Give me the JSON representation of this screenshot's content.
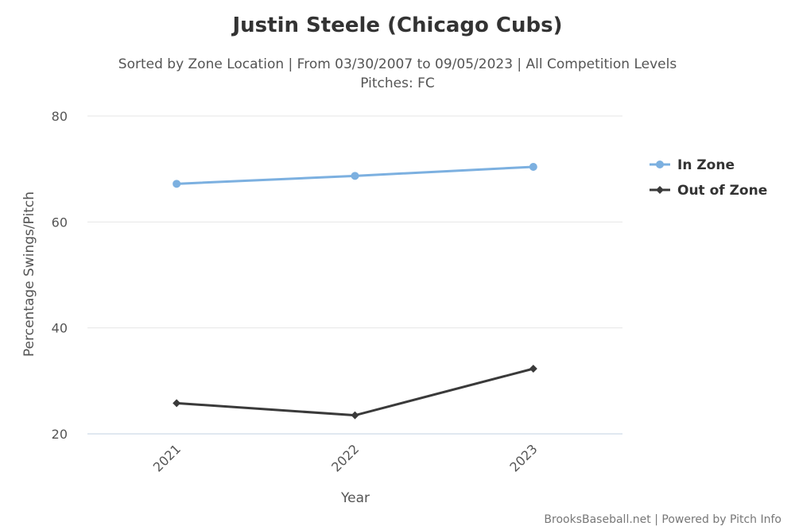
{
  "chart_data": {
    "type": "line",
    "title": "Justin Steele (Chicago Cubs)",
    "subtitle": "Sorted by Zone Location | From 03/30/2007 to 09/05/2023 | All Competition Levels",
    "subtitle2": "Pitches: FC",
    "xlabel": "Year",
    "ylabel": "Percentage Swings/Pitch",
    "categories": [
      "2021",
      "2022",
      "2023"
    ],
    "ylim": [
      20,
      80
    ],
    "yticks": [
      "20",
      "40",
      "60",
      "80"
    ],
    "grid": true,
    "legend_position": "right",
    "series": [
      {
        "name": "In Zone",
        "color": "#7cb0e0",
        "marker": "circle",
        "values": [
          67.2,
          68.7,
          70.4
        ]
      },
      {
        "name": "Out of Zone",
        "color": "#3a3a3a",
        "marker": "diamond",
        "values": [
          25.8,
          23.5,
          32.3
        ]
      }
    ],
    "credit": "BrooksBaseball.net | Powered by Pitch Info"
  }
}
